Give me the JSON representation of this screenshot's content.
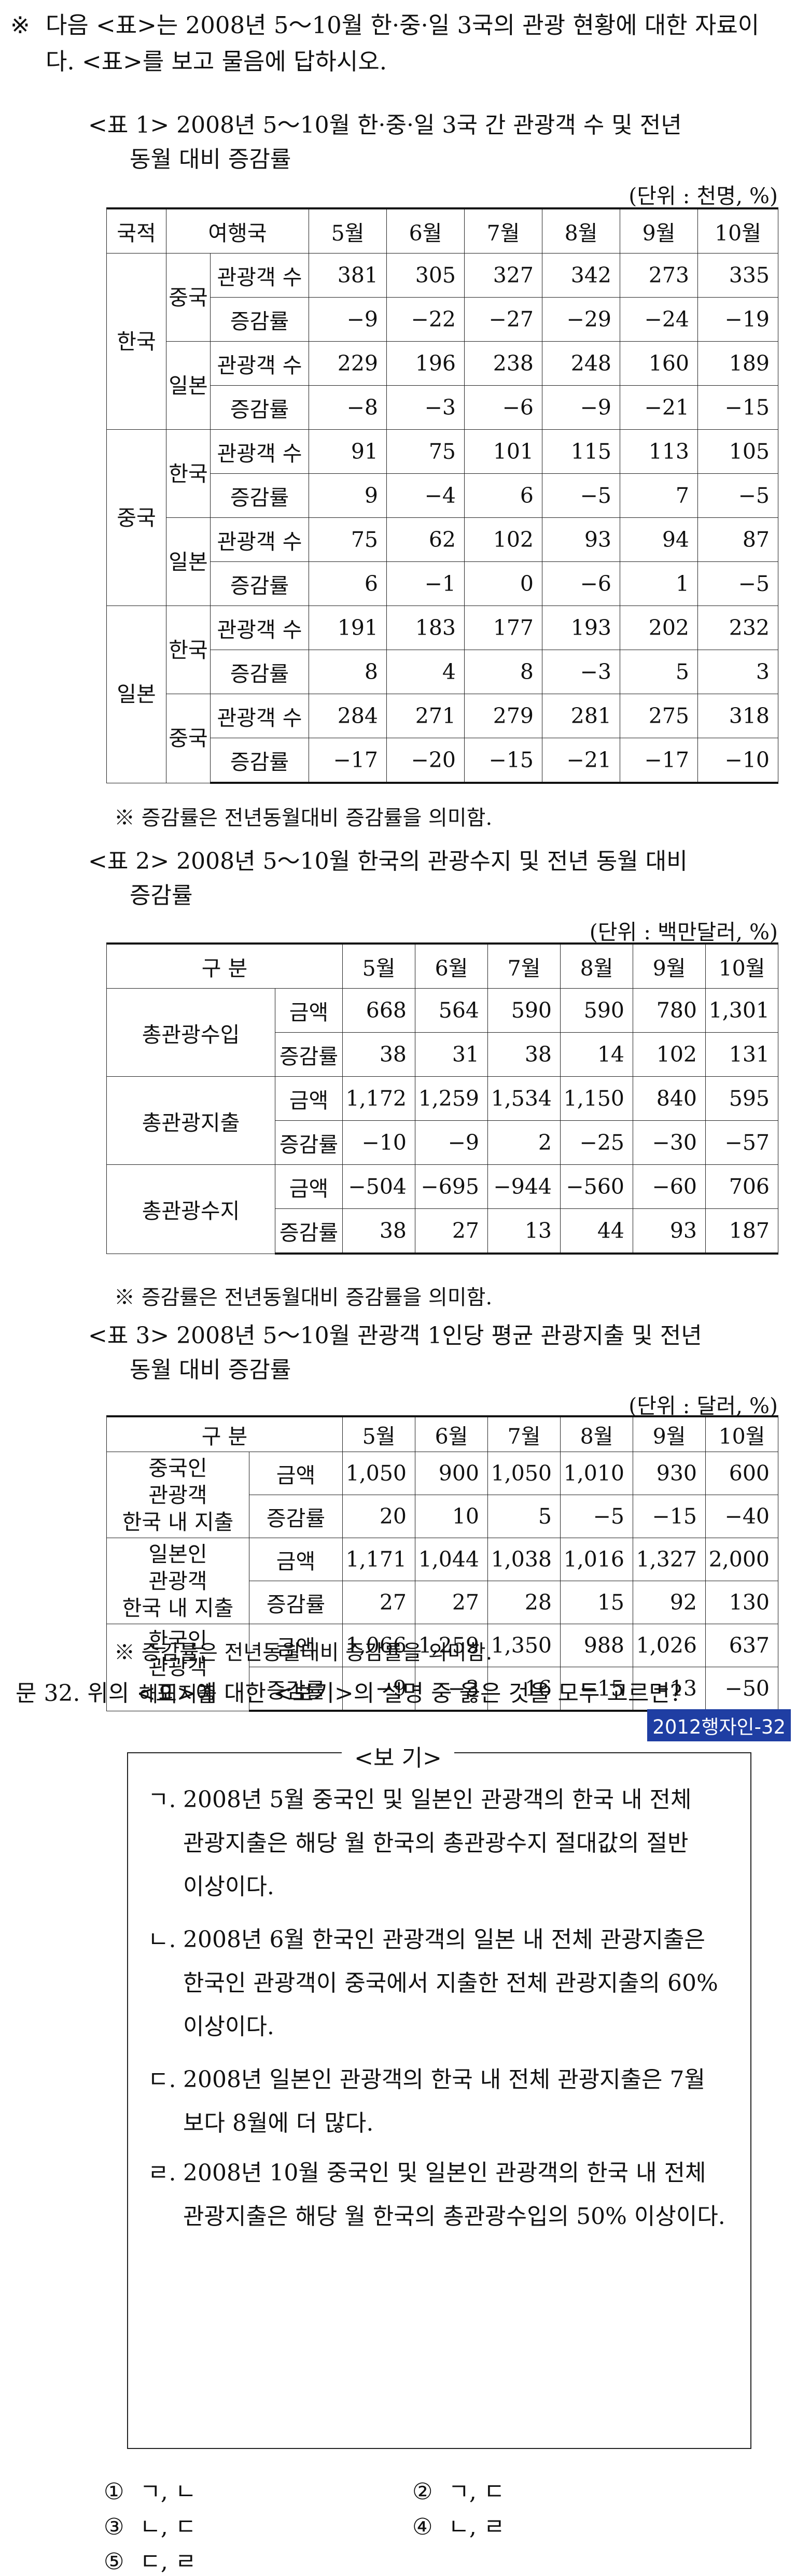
{
  "intro": {
    "mark": "※",
    "text": "다음 <표>는 2008년 5～10월 한·중·일 3국의 관광 현황에 대한 자료이다. <표>를 보고 물음에 답하시오."
  },
  "table1": {
    "title_line1": "<표 1> 2008년 5～10월 한·중·일 3국 간 관광객 수 및 전년",
    "title_line2": "동월 대비 증감률",
    "unit": "(단위 : 천명, %)",
    "headers": [
      "국적",
      "여행국",
      "5월",
      "6월",
      "7월",
      "8월",
      "9월",
      "10월"
    ],
    "groups": [
      {
        "nation": "한국",
        "subs": [
          {
            "dest": "중국",
            "rows": [
              {
                "label": "관광객 수",
                "values": [
                  "381",
                  "305",
                  "327",
                  "342",
                  "273",
                  "335"
                ]
              },
              {
                "label": "증감률",
                "values": [
                  "−9",
                  "−22",
                  "−27",
                  "−29",
                  "−24",
                  "−19"
                ]
              }
            ]
          },
          {
            "dest": "일본",
            "rows": [
              {
                "label": "관광객 수",
                "values": [
                  "229",
                  "196",
                  "238",
                  "248",
                  "160",
                  "189"
                ]
              },
              {
                "label": "증감률",
                "values": [
                  "−8",
                  "−3",
                  "−6",
                  "−9",
                  "−21",
                  "−15"
                ]
              }
            ]
          }
        ]
      },
      {
        "nation": "중국",
        "subs": [
          {
            "dest": "한국",
            "rows": [
              {
                "label": "관광객 수",
                "values": [
                  "91",
                  "75",
                  "101",
                  "115",
                  "113",
                  "105"
                ]
              },
              {
                "label": "증감률",
                "values": [
                  "9",
                  "−4",
                  "6",
                  "−5",
                  "7",
                  "−5"
                ]
              }
            ]
          },
          {
            "dest": "일본",
            "rows": [
              {
                "label": "관광객 수",
                "values": [
                  "75",
                  "62",
                  "102",
                  "93",
                  "94",
                  "87"
                ]
              },
              {
                "label": "증감률",
                "values": [
                  "6",
                  "−1",
                  "0",
                  "−6",
                  "1",
                  "−5"
                ]
              }
            ]
          }
        ]
      },
      {
        "nation": "일본",
        "subs": [
          {
            "dest": "한국",
            "rows": [
              {
                "label": "관광객 수",
                "values": [
                  "191",
                  "183",
                  "177",
                  "193",
                  "202",
                  "232"
                ]
              },
              {
                "label": "증감률",
                "values": [
                  "8",
                  "4",
                  "8",
                  "−3",
                  "5",
                  "3"
                ]
              }
            ]
          },
          {
            "dest": "중국",
            "rows": [
              {
                "label": "관광객 수",
                "values": [
                  "284",
                  "271",
                  "279",
                  "281",
                  "275",
                  "318"
                ]
              },
              {
                "label": "증감률",
                "values": [
                  "−17",
                  "−20",
                  "−15",
                  "−21",
                  "−17",
                  "−10"
                ]
              }
            ]
          }
        ]
      }
    ],
    "note": "※ 증감률은 전년동월대비 증감률을 의미함."
  },
  "table2": {
    "title_line1": "<표 2> 2008년 5～10월 한국의 관광수지 및 전년 동월 대비",
    "title_line2": "증감률",
    "unit": "(단위 : 백만달러, %)",
    "header_label": "구 분",
    "months": [
      "5월",
      "6월",
      "7월",
      "8월",
      "9월",
      "10월"
    ],
    "groups": [
      {
        "name": "총관광수입",
        "rows": [
          {
            "label": "금액",
            "values": [
              "668",
              "564",
              "590",
              "590",
              "780",
              "1,301"
            ]
          },
          {
            "label": "증감률",
            "values": [
              "38",
              "31",
              "38",
              "14",
              "102",
              "131"
            ]
          }
        ]
      },
      {
        "name": "총관광지출",
        "rows": [
          {
            "label": "금액",
            "values": [
              "1,172",
              "1,259",
              "1,534",
              "1,150",
              "840",
              "595"
            ]
          },
          {
            "label": "증감률",
            "values": [
              "−10",
              "−9",
              "2",
              "−25",
              "−30",
              "−57"
            ]
          }
        ]
      },
      {
        "name": "총관광수지",
        "rows": [
          {
            "label": "금액",
            "values": [
              "−504",
              "−695",
              "−944",
              "−560",
              "−60",
              "706"
            ]
          },
          {
            "label": "증감률",
            "values": [
              "38",
              "27",
              "13",
              "44",
              "93",
              "187"
            ]
          }
        ]
      }
    ],
    "note": "※ 증감률은 전년동월대비 증감률을 의미함."
  },
  "table3": {
    "title_line1": "<표 3> 2008년 5～10월 관광객 1인당 평균 관광지출 및 전년",
    "title_line2": "동월 대비 증감률",
    "unit": "(단위 : 달러, %)",
    "header_label": "구 분",
    "months": [
      "5월",
      "6월",
      "7월",
      "8월",
      "9월",
      "10월"
    ],
    "groups": [
      {
        "name_lines": [
          "중국인",
          "관광객",
          "한국 내 지출"
        ],
        "rows": [
          {
            "label": "금액",
            "values": [
              "1,050",
              "900",
              "1,050",
              "1,010",
              "930",
              "600"
            ]
          },
          {
            "label": "증감률",
            "values": [
              "20",
              "10",
              "5",
              "−5",
              "−15",
              "−40"
            ]
          }
        ]
      },
      {
        "name_lines": [
          "일본인",
          "관광객",
          "한국 내 지출"
        ],
        "rows": [
          {
            "label": "금액",
            "values": [
              "1,171",
              "1,044",
              "1,038",
              "1,016",
              "1,327",
              "2,000"
            ]
          },
          {
            "label": "증감률",
            "values": [
              "27",
              "27",
              "28",
              "15",
              "92",
              "130"
            ]
          }
        ]
      },
      {
        "name_lines": [
          "한국인",
          "관광객",
          "해외지출"
        ],
        "rows": [
          {
            "label": "금액",
            "values": [
              "1,066",
              "1,259",
              "1,350",
              "988",
              "1,026",
              "637"
            ]
          },
          {
            "label": "증감률",
            "values": [
              "−9",
              "−3",
              "16",
              "−15",
              "−13",
              "−50"
            ]
          }
        ]
      }
    ],
    "note": "※ 증감률은 전년동월대비 증감률을 의미함."
  },
  "question": {
    "text": "문 32. 위의 <표>에 대한 <보기>의 설명 중 옳은 것을 모두 고르면?",
    "badge": "2012행자인-32",
    "badge_color": "#1f3ea3"
  },
  "bogi": {
    "title": "<보 기>",
    "items": [
      {
        "key": "ㄱ.",
        "lines": [
          "2008년 5월 중국인 및 일본인 관광객의 한국 내 전체",
          "관광지출은 해당 월 한국의 총관광수지 절대값의 절반",
          "이상이다."
        ]
      },
      {
        "key": "ㄴ.",
        "lines": [
          "2008년 6월 한국인 관광객의 일본 내 전체 관광지출은",
          "한국인 관광객이 중국에서 지출한 전체 관광지출의 60%",
          "이상이다."
        ]
      },
      {
        "key": "ㄷ.",
        "lines": [
          "2008년 일본인 관광객의 한국 내 전체 관광지출은 7월",
          "보다 8월에 더 많다."
        ]
      },
      {
        "key": "ㄹ.",
        "lines": [
          "2008년 10월 중국인 및 일본인 관광객의 한국 내 전체",
          "관광지출은 해당 월 한국의 총관광수입의 50% 이상이다."
        ]
      }
    ]
  },
  "choices": [
    {
      "num": "①",
      "text": "ㄱ, ㄴ"
    },
    {
      "num": "②",
      "text": "ㄱ, ㄷ"
    },
    {
      "num": "③",
      "text": "ㄴ, ㄷ"
    },
    {
      "num": "④",
      "text": "ㄴ, ㄹ"
    },
    {
      "num": "⑤",
      "text": "ㄷ, ㄹ"
    }
  ]
}
